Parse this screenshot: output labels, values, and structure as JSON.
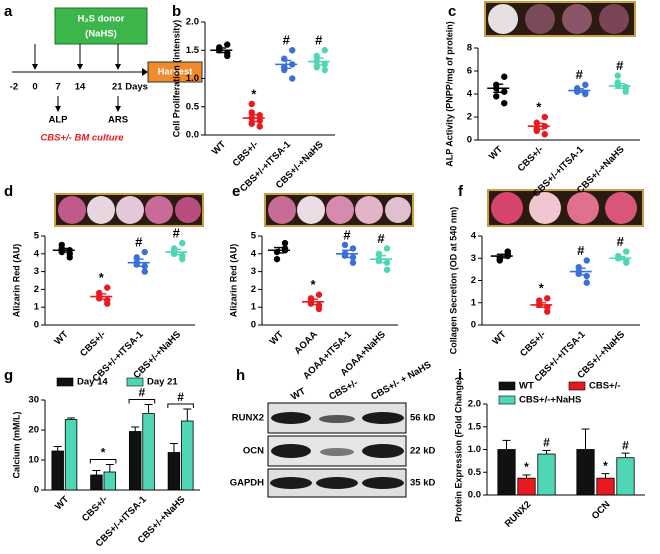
{
  "panels": [
    "a",
    "b",
    "c",
    "d",
    "e",
    "f",
    "g",
    "h",
    "i"
  ],
  "timeline": {
    "donor": "H₂S donor",
    "donor_sub": "(NaHS)",
    "harvest": "Harvest",
    "days": [
      "-2",
      "0",
      "7",
      "14",
      "21 Days"
    ],
    "assays": [
      "ALP",
      "ARS"
    ],
    "culture": "CBS+/- BM culture"
  },
  "blot": {
    "columns": [
      "WT",
      "CBS+/-",
      "CBS+/- + NaHS"
    ],
    "rows": [
      "RUNX2",
      "OCN",
      "GAPDH"
    ],
    "sizes": [
      "56 kD",
      "22 kD",
      "35 kD"
    ]
  },
  "chart_data": [
    {
      "type": "dot",
      "ylabel": "Cell Proliferation (intensity)",
      "categories": [
        "WT",
        "CBS+/-",
        "CBS+/-+ITSA-1",
        "CBS+/-+NaHS"
      ],
      "colors": [
        "#000000",
        "#e8191f",
        "#3b6fd9",
        "#4fd6b4"
      ],
      "points": [
        [
          1.45,
          1.55,
          1.5,
          1.6,
          1.4,
          1.52
        ],
        [
          0.15,
          0.3,
          0.4,
          0.25,
          0.35,
          0.2,
          0.55
        ],
        [
          1.0,
          1.2,
          1.35,
          1.25,
          1.5,
          1.15
        ],
        [
          1.15,
          1.3,
          1.4,
          1.25,
          1.5,
          1.2
        ]
      ],
      "values": [
        1.5,
        0.3,
        1.25,
        1.3
      ],
      "errors": [
        0.04,
        0.06,
        0.07,
        0.06
      ],
      "markers": [
        null,
        "*",
        "#",
        "#"
      ],
      "ylim": [
        0,
        2
      ],
      "yticks": [
        {
          "value": 0,
          "label": "0.0"
        },
        0.5,
        {
          "value": 1,
          "label": "1.0"
        },
        1.5,
        {
          "value": 2,
          "label": "2.0"
        }
      ]
    },
    {
      "type": "dot",
      "ylabel": "ALP Activity (PNPP/mg of protein)",
      "categories": [
        "WT",
        "CBS+/-",
        "CBS+/-+ITSA-1",
        "CBS+/-+NaHS"
      ],
      "colors": [
        "#000000",
        "#e8191f",
        "#3b6fd9",
        "#4fd6b4"
      ],
      "points": [
        [
          5.5,
          4.5,
          3.8,
          4.2,
          3.2,
          4.8
        ],
        [
          0.5,
          1.0,
          1.5,
          1.2,
          2.0,
          0.8
        ],
        [
          4.0,
          4.3,
          4.5,
          4.1,
          4.8,
          4.2
        ],
        [
          4.5,
          5.0,
          5.6,
          4.2,
          4.6,
          4.8
        ]
      ],
      "values": [
        4.5,
        1.2,
        4.3,
        4.7
      ],
      "errors": [
        0.35,
        0.25,
        0.15,
        0.2
      ],
      "markers": [
        null,
        "*",
        "#",
        "#"
      ],
      "ylim": [
        0,
        8
      ],
      "yticks": [
        0,
        2,
        4,
        6,
        8
      ]
    },
    {
      "type": "dot",
      "ylabel": "Alizarin Red (AU)",
      "categories": [
        "WT",
        "CBS+/-",
        "CBS+/-+ITSA-1",
        "CBS+/-+NaHS"
      ],
      "colors": [
        "#000000",
        "#e8191f",
        "#3b6fd9",
        "#4fd6b4"
      ],
      "points": [
        [
          4.0,
          4.3,
          4.5,
          3.8,
          4.2,
          4.1
        ],
        [
          1.2,
          1.5,
          1.8,
          2.1,
          1.4,
          1.6
        ],
        [
          3.0,
          3.5,
          3.8,
          4.1,
          3.3,
          3.4
        ],
        [
          3.7,
          4.0,
          4.3,
          4.6,
          3.9,
          4.2
        ]
      ],
      "values": [
        4.2,
        1.6,
        3.5,
        4.1
      ],
      "errors": [
        0.1,
        0.15,
        0.2,
        0.15
      ],
      "markers": [
        null,
        "*",
        "#",
        "#"
      ],
      "ylim": [
        0,
        5
      ],
      "yticks": [
        0,
        1,
        2,
        3,
        4,
        5
      ]
    },
    {
      "type": "dot",
      "ylabel": "Alizarin Red (AU)",
      "categories": [
        "WT",
        "AOAA",
        "AOAA+ITSA-1",
        "AOAA+NaHS"
      ],
      "colors": [
        "#000000",
        "#e8191f",
        "#3b6fd9",
        "#4fd6b4"
      ],
      "points": [
        [
          4.6,
          4.1,
          3.7,
          4.2,
          4.3
        ],
        [
          0.9,
          1.2,
          1.4,
          1.7,
          1.1,
          1.5
        ],
        [
          3.5,
          4.0,
          4.5,
          3.8,
          4.3,
          3.9
        ],
        [
          3.1,
          3.6,
          4.0,
          4.3,
          3.5,
          3.7
        ]
      ],
      "values": [
        4.2,
        1.3,
        4.0,
        3.7
      ],
      "errors": [
        0.15,
        0.15,
        0.2,
        0.2
      ],
      "markers": [
        null,
        "*",
        "#",
        "#"
      ],
      "ylim": [
        0,
        5
      ],
      "yticks": [
        0,
        1,
        2,
        3,
        4,
        5
      ]
    },
    {
      "type": "dot",
      "ylabel": "Collagen Secretion (OD at 540 nm)",
      "categories": [
        "WT",
        "CBS+/-",
        "CBS+/-+ITSA-1",
        "CBS+/-+NaHS"
      ],
      "colors": [
        "#000000",
        "#e8191f",
        "#3b6fd9",
        "#4fd6b4"
      ],
      "points": [
        [
          3.2,
          3.0,
          2.9,
          3.1,
          3.3
        ],
        [
          0.6,
          0.9,
          1.1,
          0.8,
          1.2
        ],
        [
          1.9,
          2.3,
          2.6,
          2.9,
          2.2,
          2.4
        ],
        [
          2.8,
          3.0,
          3.1,
          3.3,
          2.9
        ]
      ],
      "values": [
        3.1,
        0.9,
        2.4,
        3.0
      ],
      "errors": [
        0.08,
        0.1,
        0.15,
        0.07
      ],
      "markers": [
        null,
        "*",
        "#",
        "#"
      ],
      "ylim": [
        0,
        4
      ],
      "yticks": [
        0,
        1,
        2,
        3,
        4
      ]
    },
    {
      "type": "bar",
      "ylabel": "Calcium (mM/L)",
      "categories": [
        "WT",
        "CBS+/-",
        "CBS+/-+ITSA-1",
        "CBS+/-+NaHS"
      ],
      "series": [
        {
          "name": "Day 14",
          "color": "#111111",
          "values": [
            13,
            5,
            19.5,
            12.5
          ],
          "errors": [
            1.5,
            1.5,
            1.5,
            3
          ]
        },
        {
          "name": "Day 21",
          "color": "#4fd6b4",
          "values": [
            23.5,
            6,
            25.5,
            23
          ],
          "errors": [
            0.5,
            2.5,
            3,
            4
          ]
        }
      ],
      "annotations": [
        null,
        "*",
        "#",
        "#"
      ],
      "ylim": [
        0,
        30
      ],
      "yticks": [
        0,
        10,
        20,
        30
      ],
      "legend": "top"
    },
    {
      "type": "bar",
      "ylabel": "Protein Expression (Fold Change)",
      "categories": [
        "RUNX2",
        "OCN"
      ],
      "series": [
        {
          "name": "WT",
          "color": "#111111",
          "values": [
            1.0,
            1.0
          ],
          "errors": [
            0.2,
            0.45
          ]
        },
        {
          "name": "CBS+/-",
          "color": "#e8191f",
          "values": [
            0.37,
            0.37
          ],
          "errors": [
            0.07,
            0.1
          ],
          "markers": [
            "*",
            "*"
          ]
        },
        {
          "name": "CBS+/-+NaHS",
          "color": "#4fd6b4",
          "values": [
            0.9,
            0.82
          ],
          "errors": [
            0.08,
            0.1
          ],
          "markers": [
            "#",
            "#"
          ]
        }
      ],
      "ylim": [
        0,
        2
      ],
      "yticks": [
        {
          "value": 0,
          "label": "0.0"
        },
        0.5,
        {
          "value": 1,
          "label": "1.0"
        },
        1.5,
        {
          "value": 2,
          "label": "2.0"
        }
      ],
      "legend": "top"
    }
  ]
}
